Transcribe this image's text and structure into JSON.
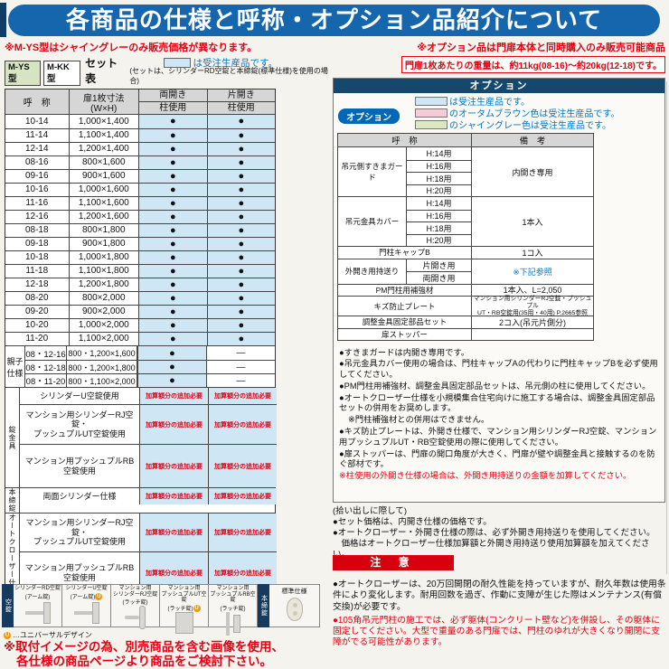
{
  "page": {
    "title": "各商品の仕様と呼称・オプション品紹介について"
  },
  "left": {
    "note_red": "※M-YS型はシャイングレーのみ販売価格が異なります。",
    "legend_blue": "は受注生産品です。",
    "badge_ys": "M-YS型",
    "badge_kk": "M-KK型",
    "set_title": "セット表",
    "set_subtitle": "(セットは、シリンダーRD空錠と本締錠(標準仕様)を使用の場合)",
    "table": {
      "h_name": "呼　称",
      "h_size": "扉1枚寸法\n(W×H)",
      "h_ryo": "両開き",
      "h_kata": "片開き",
      "h_pillar": "柱使用",
      "dot": "●",
      "dash": "—",
      "add_note": "加算額分の追加必要",
      "rows": [
        {
          "name": "10-14",
          "size": "1,000×1,400"
        },
        {
          "name": "11-14",
          "size": "1,100×1,400"
        },
        {
          "name": "12-14",
          "size": "1,200×1,400"
        },
        {
          "name": "08-16",
          "size": "800×1,600"
        },
        {
          "name": "09-16",
          "size": "900×1,600"
        },
        {
          "name": "10-16",
          "size": "1,000×1,600"
        },
        {
          "name": "11-16",
          "size": "1,100×1,600"
        },
        {
          "name": "12-16",
          "size": "1,200×1,600"
        },
        {
          "name": "08-18",
          "size": "800×1,800"
        },
        {
          "name": "09-18",
          "size": "900×1,800"
        },
        {
          "name": "10-18",
          "size": "1,000×1,800"
        },
        {
          "name": "11-18",
          "size": "1,100×1,800"
        },
        {
          "name": "12-18",
          "size": "1,200×1,800"
        },
        {
          "name": "08-20",
          "size": "800×2,000"
        },
        {
          "name": "09-20",
          "size": "900×2,000"
        },
        {
          "name": "10-20",
          "size": "1,000×2,000"
        },
        {
          "name": "11-20",
          "size": "1,100×2,000"
        }
      ],
      "oyako_label": "親子\n仕様",
      "oyako_rows": [
        {
          "code": "08・12-16",
          "size": "800・1,200×1,600"
        },
        {
          "code": "08・12-18",
          "size": "800・1,200×1,800"
        },
        {
          "code": "08・11-20",
          "size": "800・1,100×2,000"
        }
      ],
      "lock_label": "錠金具",
      "lock_rows": [
        {
          "name": "シリンダーU空錠使用",
          "hcls": "h18"
        },
        {
          "name": "マンション用シリンダーRJ空錠・\nプッシュプルUT空錠使用",
          "hcls": "h44"
        },
        {
          "name": "マンション用プッシュプルRB\n空錠使用",
          "hcls": "h48"
        }
      ],
      "honjime_label": "本締錠",
      "honjime_row": "両面シリンダー仕様",
      "auto_label": "オートクローザー仕様",
      "auto_rows": [
        {
          "name": "マンション用シリンダーRJ空錠・\nプッシュプルUT空錠使用",
          "hcls": "h42"
        },
        {
          "name": "マンション用プッシュプルRB\n空錠使用",
          "hcls": "h46"
        }
      ]
    },
    "locks_strip": {
      "vertical_label": "空錠",
      "items": [
        {
          "name": "シリンダーRD空錠",
          "sub": "(アーム錠)",
          "ucls": "",
          "shape": "lever"
        },
        {
          "name": "シリンダーU空錠",
          "sub": "(アーム錠)",
          "ucls": "show",
          "shape": "lever"
        },
        {
          "name": "マンション用\nシリンダーRJ空錠",
          "sub": "(ラッチ錠)",
          "ucls": "",
          "shape": "latch"
        },
        {
          "name": "マンション用\nプッシュプルUT空錠",
          "sub": "(ラッチ錠)",
          "ucls": "show",
          "shape": "box"
        },
        {
          "name": "マンション用\nプッシュプルRB空錠",
          "sub": "(ラッチ錠)",
          "ucls": "",
          "shape": "bar"
        }
      ],
      "honjime_label": "本締錠",
      "standard_label": "標準仕様",
      "u_note": "…ユニバーサルデザイン"
    },
    "bottom_red_1": "※取付イメージの為、別売商品を含む画像を使用、",
    "bottom_red_2": "各仕様の商品ページより商品をご検討下さい。"
  },
  "right": {
    "note_red": "※オプション品は門扉本体と同時購入のみ販売可能商品",
    "weight_note": "門扉1枚あたりの重量は、約11kg(08-16)～約20kg(12-18)です。",
    "panel_title": "オプション",
    "legend": [
      {
        "color": "#cfe7f5",
        "text": "は受注生産品です。"
      },
      {
        "color": "#f5ccd7",
        "text": "のオータムブラウン色は受注生産品です。"
      },
      {
        "color": "#dce6bf",
        "text": "のシャイングレー色は受注生産品です。"
      }
    ],
    "badge": "オプション",
    "table": {
      "h_name": "呼　称",
      "h_biko": "備　考",
      "s1": {
        "name": "吊元側すきまガード",
        "subs": [
          "H:14用",
          "H:16用",
          "H:18用",
          "H:20用"
        ],
        "remark": "内開き専用"
      },
      "s2": {
        "name": "吊元金具カバー",
        "subs": [
          "H:14用",
          "H:16用",
          "H:18用",
          "H:20用"
        ],
        "remark": "1本入"
      },
      "s3": {
        "name": "門柱キャップB",
        "remark": "1コ入"
      },
      "s4": {
        "name": "外開き用持送り",
        "subs": [
          "片開き用",
          "両開き用"
        ],
        "remark": "※下記参照"
      },
      "s5": {
        "name": "PM門柱用補強材",
        "remark": "1本入、L=2,050"
      },
      "s6": {
        "name": "キズ防止プレート",
        "remark": "マンション用シリンダーRJ空錠・プッシュプル\nUT・RB空錠用(35用・40用) P.2665参照"
      },
      "s7": {
        "name": "調整金具固定部品セット",
        "remark": "2コ入(吊元片側分)"
      },
      "s8": {
        "name": "扉ストッパー",
        "remark": ""
      }
    },
    "notes": [
      {
        "text": "●すきまガードは内開き専用です。",
        "cls": ""
      },
      {
        "text": "●吊元金具カバー使用の場合は、門柱キャップAの代わりに門柱キャップBを必ず使用してください。",
        "cls": ""
      },
      {
        "text": "●PM門柱用補強材、調整金具固定部品セットは、吊元側の柱に使用してください。",
        "cls": ""
      },
      {
        "text": "●オートクローザー仕様を小規模集合住宅向けに施工する場合は、調整金具固定部品セットの併用をお奨めします。",
        "cls": ""
      },
      {
        "text": "※門柱補強材との併用はできません。",
        "cls": "indent"
      },
      {
        "text": "●キズ防止プレートは、外開き仕様で、マンション用シリンダーRJ空錠、マンション用プッシュプルUT・RB空錠使用の際に使用してください。",
        "cls": ""
      },
      {
        "text": "●扉ストッパーは、門扉の開口角度が大きく、門扉が壁や調整金具と接触するのを防ぐ部材です。",
        "cls": ""
      },
      {
        "text": "※柱使用の外開き仕様の場合は、外開き用持送りの金額を加算してください。",
        "cls": "red"
      }
    ],
    "pickup": {
      "title": "(拾い出しに際して)",
      "items": [
        {
          "text": "●セット価格は、内開き仕様の価格です。",
          "cls": ""
        },
        {
          "text": "●オートクローザー・外開き仕様の際は、必ず外開き用持送りを使用してください。",
          "cls": ""
        },
        {
          "text": "　価格はオートクローザー仕様加算額と外開き用持送り使用加算額を加えてください。",
          "cls": ""
        }
      ]
    },
    "caution_title": "注 意",
    "caution_notes": [
      {
        "text": "●オートクローザーは、20万回開閉の耐久性能を持っていますが、耐久年数は使用条件により変化します。耐用回数を過ぎ、作動に支障が生じた際はメンテナンス(有償交換)が必要です。",
        "cls": ""
      },
      {
        "text": "●105角吊元門柱の施工では、必ず躯体(コンクリート壁など)を併設し、その躯体に固定してください。大型で重量のある門扉では、門柱のゆれが大きくなり開閉に支障がでる可能性があります。",
        "cls": "red"
      }
    ]
  },
  "colors": {
    "banner_blue": "#1566ad",
    "panel_navy": "#14496d",
    "cell_blue": "#cfe7f5",
    "legend_pink": "#f5ccd7",
    "legend_green": "#dce6bf",
    "accent_red": "#e60012",
    "blue_text": "#0075c2"
  }
}
